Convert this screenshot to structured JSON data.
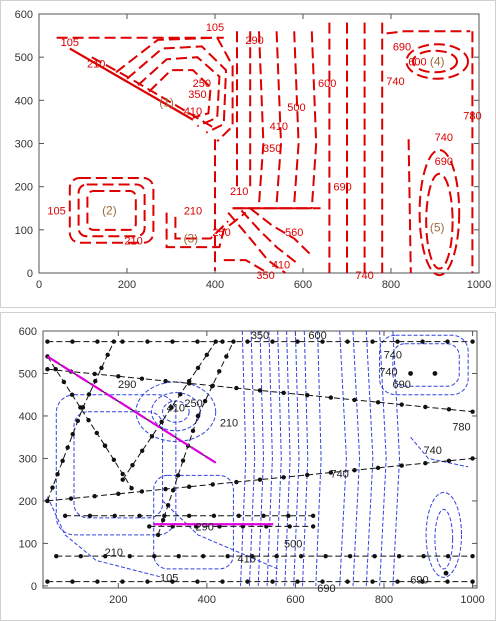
{
  "chart_data": [
    {
      "type": "contour",
      "xlim": [
        0,
        1000
      ],
      "ylim": [
        0,
        600
      ],
      "x_ticks": [
        0,
        200,
        400,
        600,
        800,
        1000
      ],
      "y_ticks": [
        0,
        100,
        200,
        300,
        400,
        500,
        600
      ],
      "line_color": "#dd0000",
      "contour_levels": [
        105,
        210,
        250,
        290,
        350,
        410,
        500,
        560,
        600,
        690,
        740,
        780
      ],
      "region_labels": [
        {
          "text": "(1)",
          "x": 290,
          "y": 395
        },
        {
          "text": "(2)",
          "x": 160,
          "y": 145
        },
        {
          "text": "(3)",
          "x": 345,
          "y": 80
        },
        {
          "text": "(4)",
          "x": 905,
          "y": 490
        },
        {
          "text": "(5)",
          "x": 905,
          "y": 105
        }
      ],
      "contour_labels": [
        {
          "text": "105",
          "x": 70,
          "y": 535
        },
        {
          "text": "210",
          "x": 130,
          "y": 485
        },
        {
          "text": "105",
          "x": 400,
          "y": 570
        },
        {
          "text": "290",
          "x": 490,
          "y": 540
        },
        {
          "text": "250",
          "x": 370,
          "y": 440
        },
        {
          "text": "350",
          "x": 360,
          "y": 415
        },
        {
          "text": "410",
          "x": 350,
          "y": 375
        },
        {
          "text": "600",
          "x": 655,
          "y": 440
        },
        {
          "text": "500",
          "x": 585,
          "y": 385
        },
        {
          "text": "410",
          "x": 545,
          "y": 340
        },
        {
          "text": "350",
          "x": 530,
          "y": 290
        },
        {
          "text": "210",
          "x": 455,
          "y": 190
        },
        {
          "text": "690",
          "x": 690,
          "y": 200
        },
        {
          "text": "690",
          "x": 825,
          "y": 525
        },
        {
          "text": "600",
          "x": 860,
          "y": 490
        },
        {
          "text": "740",
          "x": 810,
          "y": 445
        },
        {
          "text": "780",
          "x": 985,
          "y": 365
        },
        {
          "text": "740",
          "x": 920,
          "y": 315
        },
        {
          "text": "690",
          "x": 920,
          "y": 260
        },
        {
          "text": "105",
          "x": 40,
          "y": 145
        },
        {
          "text": "210",
          "x": 215,
          "y": 75
        },
        {
          "text": "210",
          "x": 350,
          "y": 145
        },
        {
          "text": "250",
          "x": 415,
          "y": 95
        },
        {
          "text": "560",
          "x": 580,
          "y": 95
        },
        {
          "text": "410",
          "x": 550,
          "y": 20
        },
        {
          "text": "350",
          "x": 515,
          "y": -5
        },
        {
          "text": "740",
          "x": 740,
          "y": -5
        }
      ]
    },
    {
      "type": "contour+mesh",
      "xlim": [
        30,
        1010
      ],
      "ylim": [
        -5,
        600
      ],
      "x_ticks": [
        200,
        400,
        600,
        800,
        1000
      ],
      "y_ticks": [
        0,
        100,
        200,
        300,
        400,
        500,
        600
      ],
      "contour_color": "#3344dd",
      "mesh_color": "#111111",
      "highlight_color": "#dd00dd",
      "contour_labels": [
        {
          "text": "350",
          "x": 520,
          "y": 590
        },
        {
          "text": "600",
          "x": 650,
          "y": 590
        },
        {
          "text": "740",
          "x": 820,
          "y": 545
        },
        {
          "text": "740",
          "x": 810,
          "y": 505
        },
        {
          "text": "690",
          "x": 840,
          "y": 475
        },
        {
          "text": "290",
          "x": 220,
          "y": 475
        },
        {
          "text": "410",
          "x": 330,
          "y": 420
        },
        {
          "text": "250",
          "x": 370,
          "y": 430
        },
        {
          "text": "210",
          "x": 450,
          "y": 385
        },
        {
          "text": "780",
          "x": 975,
          "y": 375
        },
        {
          "text": "740",
          "x": 910,
          "y": 320
        },
        {
          "text": "740",
          "x": 700,
          "y": 265
        },
        {
          "text": "290",
          "x": 395,
          "y": 140
        },
        {
          "text": "500",
          "x": 595,
          "y": 100
        },
        {
          "text": "210",
          "x": 190,
          "y": 80
        },
        {
          "text": "410",
          "x": 490,
          "y": 65
        },
        {
          "text": "105",
          "x": 315,
          "y": 20
        },
        {
          "text": "690",
          "x": 670,
          "y": -5
        },
        {
          "text": "690",
          "x": 880,
          "y": 15
        }
      ]
    }
  ]
}
